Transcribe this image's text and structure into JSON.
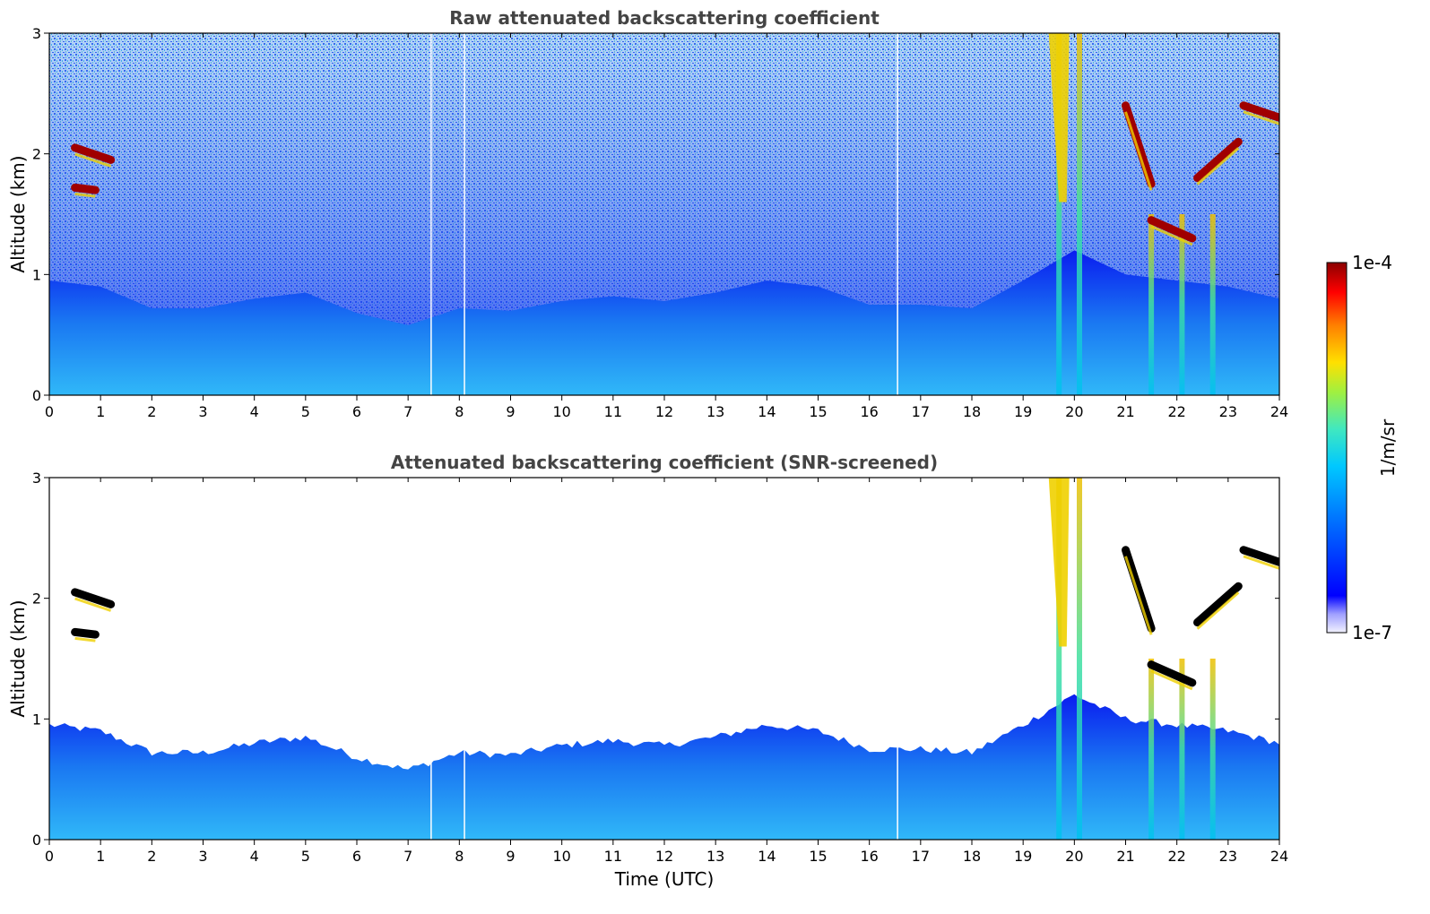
{
  "chart_data": [
    {
      "type": "heatmap",
      "title": "Raw attenuated backscattering coefficient",
      "ylabel": "Altitude (km)",
      "xlabel": "",
      "xlim": [
        0,
        24
      ],
      "ylim": [
        0,
        3
      ],
      "x_ticks": [
        "0",
        "1",
        "2",
        "3",
        "4",
        "5",
        "6",
        "7",
        "8",
        "9",
        "10",
        "11",
        "12",
        "13",
        "14",
        "15",
        "16",
        "17",
        "18",
        "19",
        "20",
        "21",
        "22",
        "23",
        "24"
      ],
      "y_ticks": [
        "0",
        "1",
        "2",
        "3"
      ],
      "screened": false,
      "mixing_layer_top_km": [
        [
          0,
          0.95
        ],
        [
          1,
          0.9
        ],
        [
          2,
          0.72
        ],
        [
          3,
          0.72
        ],
        [
          4,
          0.8
        ],
        [
          5,
          0.85
        ],
        [
          6,
          0.68
        ],
        [
          7,
          0.58
        ],
        [
          8,
          0.72
        ],
        [
          9,
          0.7
        ],
        [
          10,
          0.78
        ],
        [
          11,
          0.82
        ],
        [
          12,
          0.78
        ],
        [
          13,
          0.85
        ],
        [
          14,
          0.95
        ],
        [
          15,
          0.9
        ],
        [
          16,
          0.75
        ],
        [
          17,
          0.75
        ],
        [
          18,
          0.72
        ],
        [
          19,
          0.95
        ],
        [
          20,
          1.2
        ],
        [
          21,
          1.0
        ],
        [
          22,
          0.95
        ],
        [
          23,
          0.9
        ],
        [
          24,
          0.8
        ]
      ],
      "cloud_segments_km": [
        {
          "x": [
            0.5,
            1.2
          ],
          "y": [
            2.05,
            1.95
          ]
        },
        {
          "x": [
            0.5,
            0.9
          ],
          "y": [
            1.72,
            1.7
          ]
        },
        {
          "x": [
            21.0,
            21.5
          ],
          "y": [
            2.4,
            1.75
          ]
        },
        {
          "x": [
            21.5,
            22.3
          ],
          "y": [
            1.45,
            1.3
          ]
        },
        {
          "x": [
            22.4,
            23.2
          ],
          "y": [
            1.8,
            2.1
          ]
        },
        {
          "x": [
            23.3,
            24.0
          ],
          "y": [
            2.4,
            2.3
          ]
        }
      ],
      "precipitation_streaks_utc": [
        19.7,
        20.1,
        21.5,
        22.1,
        22.7
      ]
    },
    {
      "type": "heatmap",
      "title": "Attenuated backscattering coefficient (SNR-screened)",
      "ylabel": "Altitude (km)",
      "xlabel": "Time (UTC)",
      "xlim": [
        0,
        24
      ],
      "ylim": [
        0,
        3
      ],
      "x_ticks": [
        "0",
        "1",
        "2",
        "3",
        "4",
        "5",
        "6",
        "7",
        "8",
        "9",
        "10",
        "11",
        "12",
        "13",
        "14",
        "15",
        "16",
        "17",
        "18",
        "19",
        "20",
        "21",
        "22",
        "23",
        "24"
      ],
      "y_ticks": [
        "0",
        "1",
        "2",
        "3"
      ],
      "screened": true
    }
  ],
  "colorbar": {
    "label": "1/m/sr",
    "max_label": "1e-4",
    "min_label": "1e-7",
    "scale": "log",
    "range": [
      1e-07,
      0.0001
    ],
    "colormap": [
      "#f2f2ff",
      "#7f7fff",
      "#0000ff",
      "#0070ff",
      "#00c8ff",
      "#40e8c0",
      "#90f060",
      "#ffe000",
      "#ff8000",
      "#ff0000",
      "#8b0000"
    ]
  },
  "colors": {
    "title_text": "#444444",
    "axis_text": "#000000",
    "mixing_layer_low": "#2aa0f0",
    "mixing_layer_top": "#0a1cf0",
    "noise_blue": "#1030f0",
    "cloud": "#a00000",
    "cloud_screened": "#000000",
    "precip": "#f0d000"
  }
}
